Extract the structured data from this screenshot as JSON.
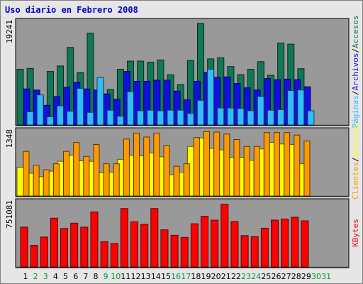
{
  "title": "Uso diario en Febrero 2008",
  "chart_data": [
    {
      "type": "bar",
      "title": "",
      "scale_max": 19241,
      "scale_max_label": "19241",
      "legend_labels": [
        "Páginas",
        "/",
        "Archivos",
        "/",
        "Accesos"
      ],
      "legend_colors": [
        "#33bbff",
        "#000000",
        "#1111dd",
        "#000000",
        "#117755"
      ],
      "x": [
        1,
        2,
        3,
        4,
        5,
        6,
        7,
        8,
        9,
        10,
        11,
        12,
        13,
        14,
        15,
        16,
        17,
        18,
        19,
        20,
        21,
        22,
        23,
        24,
        25,
        26,
        27,
        28,
        29,
        30,
        31
      ],
      "series": [
        {
          "name": "Accesos",
          "color": "#117755",
          "values": [
            10200,
            10350,
            5300,
            9800,
            10800,
            14200,
            9600,
            16800,
            7900,
            6500,
            10200,
            11700,
            11700,
            11500,
            11900,
            9200,
            7400,
            11800,
            18600,
            12100,
            12300,
            10700,
            9200,
            10200,
            11600,
            9100,
            15000,
            14800,
            10300,
            null,
            null
          ]
        },
        {
          "name": "Archivos",
          "color": "#1111dd",
          "values": [
            6600,
            6400,
            3600,
            5200,
            6900,
            7800,
            6600,
            6400,
            5700,
            4700,
            9800,
            8000,
            8000,
            8200,
            8200,
            6200,
            4600,
            8000,
            9600,
            8700,
            8800,
            7600,
            6800,
            6400,
            8500,
            8300,
            8400,
            8300,
            7000,
            null,
            null
          ]
        },
        {
          "name": "Páginas",
          "color": "#33bbff",
          "values": [
            2400,
            5500,
            1500,
            3500,
            2500,
            6700,
            2300,
            8700,
            2700,
            1600,
            6100,
            2600,
            2700,
            2600,
            2700,
            2700,
            2100,
            4500,
            10200,
            3100,
            3100,
            3000,
            2600,
            5200,
            2700,
            2800,
            6300,
            6400,
            2600,
            null,
            null
          ]
        }
      ]
    },
    {
      "type": "bar",
      "title": "",
      "scale_max": 1348,
      "scale_max_label": "1348",
      "legend_labels": [
        "Clientes",
        "/",
        "Visitas"
      ],
      "legend_colors": [
        "#ff9900",
        "#000000",
        "#ffff00"
      ],
      "x": [
        1,
        2,
        3,
        4,
        5,
        6,
        7,
        8,
        9,
        10,
        11,
        12,
        13,
        14,
        15,
        16,
        17,
        18,
        19,
        20,
        21,
        22,
        23,
        24,
        25,
        26,
        27,
        28,
        29,
        30,
        31
      ],
      "series": [
        {
          "name": "Visitas",
          "color": "#ffff00",
          "values": [
            580,
            460,
            390,
            500,
            700,
            820,
            710,
            700,
            470,
            480,
            740,
            820,
            810,
            870,
            790,
            430,
            480,
            1000,
            1170,
            960,
            930,
            780,
            780,
            720,
            950,
            1080,
            1050,
            1040,
            650,
            null,
            null
          ]
        },
        {
          "name": "Clientes",
          "color": "#ff9900",
          "values": [
            900,
            620,
            530,
            650,
            900,
            1080,
            800,
            1040,
            650,
            650,
            1150,
            1270,
            1190,
            1270,
            1020,
            600,
            650,
            1180,
            1300,
            1290,
            1250,
            1140,
            1000,
            1000,
            1280,
            1280,
            1280,
            1230,
            1110,
            null,
            null
          ]
        }
      ]
    },
    {
      "type": "bar",
      "title": "",
      "scale_max": 751081,
      "scale_max_label": "751081",
      "legend_labels": [
        "KBytes"
      ],
      "legend_colors": [
        "#ff0000"
      ],
      "x": [
        1,
        2,
        3,
        4,
        5,
        6,
        7,
        8,
        9,
        10,
        11,
        12,
        13,
        14,
        15,
        16,
        17,
        18,
        19,
        20,
        21,
        22,
        23,
        24,
        25,
        26,
        27,
        28,
        29,
        30,
        31
      ],
      "series": [
        {
          "name": "KBytes",
          "color": "#ff0000",
          "values": [
            448000,
            243000,
            337000,
            549000,
            433000,
            493000,
            448000,
            619000,
            284000,
            264000,
            657000,
            508000,
            479000,
            657000,
            418000,
            357000,
            333000,
            486000,
            570000,
            527000,
            705000,
            511000,
            353000,
            341000,
            436000,
            527000,
            540000,
            560000,
            519000,
            null,
            null
          ]
        }
      ]
    }
  ],
  "day_labels": [
    "1",
    "2",
    "3",
    "4",
    "5",
    "6",
    "7",
    "8",
    "9",
    "10",
    "11",
    "12",
    "13",
    "14",
    "15",
    "16",
    "17",
    "18",
    "19",
    "20",
    "21",
    "22",
    "23",
    "24",
    "25",
    "26",
    "27",
    "28",
    "29",
    "30",
    "31"
  ],
  "weekend_days": [
    2,
    3,
    9,
    10,
    16,
    17,
    23,
    24,
    30,
    31
  ],
  "colors": {
    "panel_bg": "#999999",
    "frame_bg": "#e6e6e6",
    "title": "#0000cc",
    "weekday_label": "#000000",
    "weekend_label": "#009933"
  }
}
